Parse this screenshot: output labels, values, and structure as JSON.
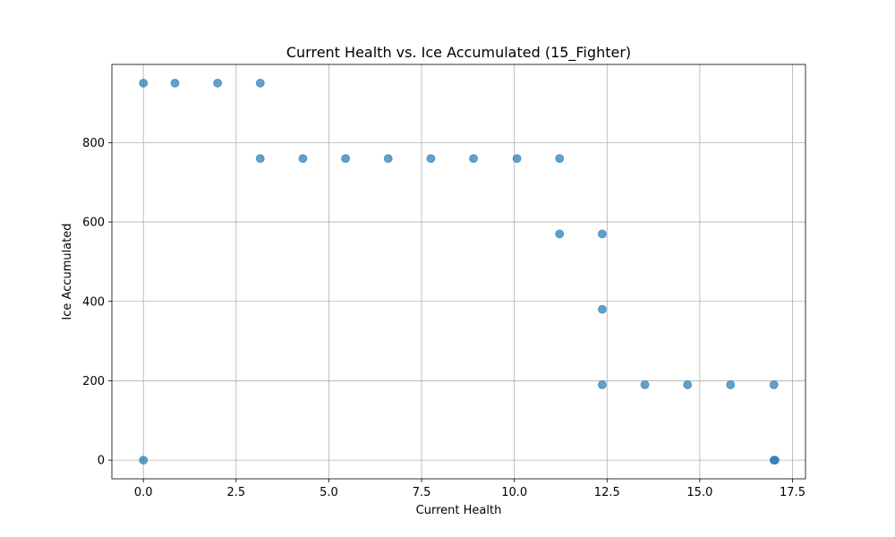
{
  "chart_data": {
    "type": "scatter",
    "title": "Current Health vs. Ice Accumulated (15_Fighter)",
    "xlabel": "Current Health",
    "ylabel": "Ice Accumulated",
    "xlim": [
      -0.85,
      17.85
    ],
    "ylim": [
      -47,
      997
    ],
    "x_ticks": [
      0.0,
      2.5,
      5.0,
      7.5,
      10.0,
      12.5,
      15.0,
      17.5
    ],
    "x_tick_labels": [
      "0.0",
      "2.5",
      "5.0",
      "7.5",
      "10.0",
      "12.5",
      "15.0",
      "17.5"
    ],
    "y_ticks": [
      0,
      200,
      400,
      600,
      800
    ],
    "y_tick_labels": [
      "0",
      "200",
      "400",
      "600",
      "800"
    ],
    "grid": true,
    "marker_color": "#1f77b4",
    "marker_alpha": 0.7,
    "points": [
      {
        "x": 0.0,
        "y": 950
      },
      {
        "x": 0.85,
        "y": 950
      },
      {
        "x": 2.0,
        "y": 950
      },
      {
        "x": 3.15,
        "y": 950
      },
      {
        "x": 3.15,
        "y": 760
      },
      {
        "x": 4.3,
        "y": 760
      },
      {
        "x": 5.45,
        "y": 760
      },
      {
        "x": 6.6,
        "y": 760
      },
      {
        "x": 7.75,
        "y": 760
      },
      {
        "x": 8.9,
        "y": 760
      },
      {
        "x": 10.07,
        "y": 760
      },
      {
        "x": 11.22,
        "y": 760
      },
      {
        "x": 11.22,
        "y": 570
      },
      {
        "x": 12.37,
        "y": 570
      },
      {
        "x": 12.37,
        "y": 380
      },
      {
        "x": 12.37,
        "y": 190
      },
      {
        "x": 13.52,
        "y": 190
      },
      {
        "x": 14.67,
        "y": 190
      },
      {
        "x": 15.83,
        "y": 190
      },
      {
        "x": 17.0,
        "y": 190
      },
      {
        "x": 0.0,
        "y": 0
      },
      {
        "x": 17.0,
        "y": 0
      },
      {
        "x": 17.03,
        "y": 0
      }
    ]
  }
}
